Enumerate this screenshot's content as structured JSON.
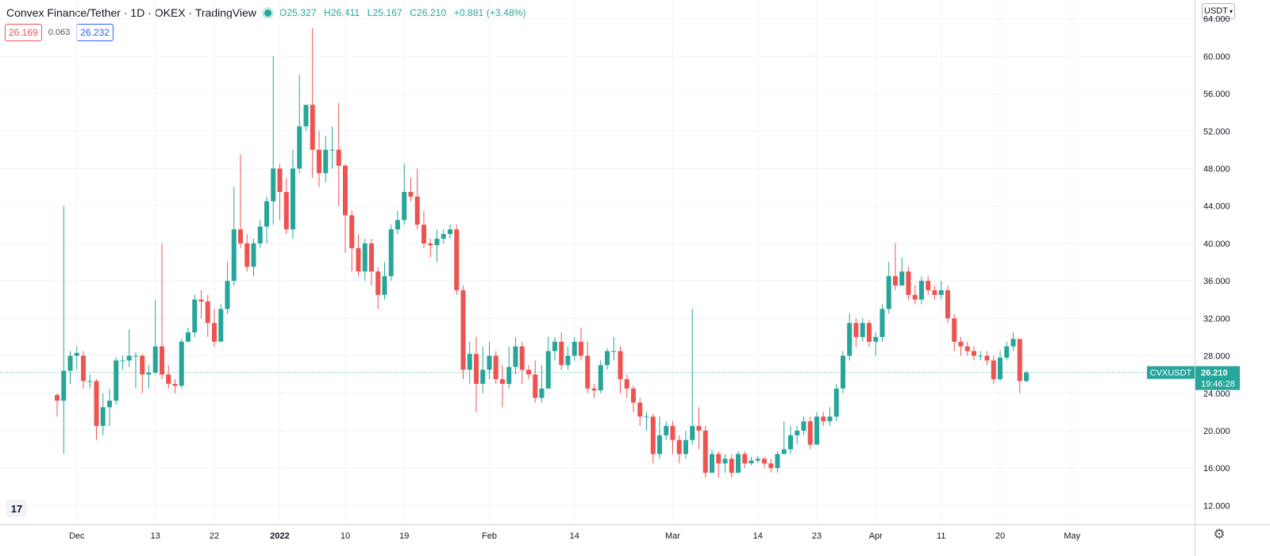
{
  "header": {
    "title": "Convex Finance/Tether · 1D · OKEX · TradingView",
    "ohlc": {
      "open": "O25.327",
      "high": "H26.411",
      "low": "L25.167",
      "close": "C26.210",
      "change": "+0.881 (+3.48%)"
    }
  },
  "quote": {
    "bid": "26.169",
    "spread": "0.063",
    "ask": "26.232"
  },
  "currency_button": {
    "label": "USDT",
    "caret": "▾"
  },
  "icons": {
    "settings": "gear-icon",
    "logo": "tradingview-logo-icon",
    "live": "live-dot-icon"
  },
  "colors": {
    "up": "#26a69a",
    "down": "#ef5350",
    "grid": "#f0f3fa",
    "bid": "#ef5350",
    "ask": "#2962ff"
  },
  "chart_data": {
    "type": "candlestick",
    "ylim": [
      10,
      66
    ],
    "y_ticks": [
      12,
      16,
      20,
      24,
      28,
      32,
      36,
      40,
      44,
      48,
      52,
      56,
      60,
      64
    ],
    "y_tick_labels": [
      "12.000",
      "16.000",
      "20.000",
      "24.000",
      "28.000",
      "32.000",
      "36.000",
      "40.000",
      "44.000",
      "48.000",
      "52.000",
      "56.000",
      "60.000",
      "64.000"
    ],
    "x_ticks": [
      {
        "label": "Dec",
        "index": 3,
        "bold": false
      },
      {
        "label": "13",
        "index": 15,
        "bold": false
      },
      {
        "label": "22",
        "index": 24,
        "bold": false
      },
      {
        "label": "2022",
        "index": 34,
        "bold": true
      },
      {
        "label": "10",
        "index": 44,
        "bold": false
      },
      {
        "label": "19",
        "index": 53,
        "bold": false
      },
      {
        "label": "Feb",
        "index": 66,
        "bold": false
      },
      {
        "label": "14",
        "index": 79,
        "bold": false
      },
      {
        "label": "Mar",
        "index": 94,
        "bold": false
      },
      {
        "label": "14",
        "index": 107,
        "bold": false
      },
      {
        "label": "23",
        "index": 116,
        "bold": false
      },
      {
        "label": "Apr",
        "index": 125,
        "bold": false
      },
      {
        "label": "11",
        "index": 135,
        "bold": false
      },
      {
        "label": "20",
        "index": 144,
        "bold": false
      },
      {
        "label": "May",
        "index": 155,
        "bold": false
      }
    ],
    "last_price": {
      "symbol": "CVXUSDT",
      "value": "26.210",
      "countdown": "19:46:28",
      "y": 26.21
    },
    "candles": [
      [
        23.8,
        23.2,
        24.0,
        21.5
      ],
      [
        23.2,
        26.4,
        44.0,
        17.5
      ],
      [
        26.4,
        28.0,
        28.5,
        25.0
      ],
      [
        28.0,
        28.3,
        29.0,
        26.5
      ],
      [
        28.0,
        25.3,
        28.5,
        24.5
      ],
      [
        25.3,
        25.3,
        26.0,
        24.5
      ],
      [
        25.3,
        20.5,
        25.5,
        19.0
      ],
      [
        20.5,
        22.5,
        24.0,
        19.5
      ],
      [
        22.5,
        23.2,
        24.5,
        20.5
      ],
      [
        23.2,
        27.5,
        27.8,
        22.8
      ],
      [
        27.5,
        27.5,
        28.0,
        26.5
      ],
      [
        27.5,
        28.0,
        30.8,
        26.8
      ],
      [
        28.0,
        28.0,
        28.4,
        24.5
      ],
      [
        28.0,
        26.0,
        28.2,
        24.0
      ],
      [
        26.0,
        26.2,
        27.0,
        24.5
      ],
      [
        26.2,
        29.0,
        34.0,
        26.0
      ],
      [
        29.0,
        26.0,
        40.0,
        25.5
      ],
      [
        26.0,
        25.0,
        27.0,
        24.5
      ],
      [
        25.0,
        24.8,
        25.5,
        24.0
      ],
      [
        24.8,
        29.5,
        29.8,
        24.5
      ],
      [
        29.5,
        30.5,
        31.0,
        29.5
      ],
      [
        30.5,
        34.0,
        34.5,
        30.0
      ],
      [
        34.0,
        33.8,
        35.0,
        32.0
      ],
      [
        33.8,
        31.5,
        34.5,
        30.0
      ],
      [
        31.5,
        29.5,
        33.0,
        29.0
      ],
      [
        29.5,
        33.0,
        33.5,
        29.8
      ],
      [
        33.0,
        36.0,
        38.0,
        32.5
      ],
      [
        36.0,
        41.5,
        46.0,
        35.5
      ],
      [
        41.5,
        40.0,
        49.5,
        39.5
      ],
      [
        40.0,
        37.5,
        41.0,
        37.0
      ],
      [
        37.5,
        40.0,
        40.5,
        36.5
      ],
      [
        40.0,
        41.8,
        42.5,
        39.5
      ],
      [
        41.8,
        44.5,
        45.0,
        40.0
      ],
      [
        44.5,
        48.0,
        60.0,
        42.0
      ],
      [
        48.0,
        45.5,
        48.5,
        42.5
      ],
      [
        45.5,
        41.5,
        47.0,
        41.0
      ],
      [
        41.5,
        48.0,
        50.0,
        40.5
      ],
      [
        48.0,
        52.5,
        58.0,
        47.5
      ],
      [
        52.5,
        54.8,
        54.8,
        52.0
      ],
      [
        54.8,
        50.0,
        63.0,
        47.0
      ],
      [
        50.0,
        47.5,
        52.0,
        46.0
      ],
      [
        47.5,
        50.0,
        51.5,
        46.5
      ],
      [
        50.0,
        50.0,
        52.5,
        48.0
      ],
      [
        50.0,
        48.3,
        55.0,
        44.0
      ],
      [
        48.3,
        43.0,
        48.5,
        39.0
      ],
      [
        43.0,
        39.5,
        43.5,
        37.0
      ],
      [
        39.5,
        37.0,
        41.0,
        36.5
      ],
      [
        37.0,
        40.0,
        40.5,
        36.0
      ],
      [
        40.0,
        37.0,
        40.5,
        35.5
      ],
      [
        37.0,
        34.5,
        37.5,
        33.0
      ],
      [
        34.5,
        36.5,
        38.0,
        34.0
      ],
      [
        36.5,
        41.5,
        42.0,
        36.0
      ],
      [
        41.5,
        42.5,
        43.5,
        41.0
      ],
      [
        42.5,
        45.5,
        48.5,
        42.0
      ],
      [
        45.5,
        45.0,
        47.0,
        44.5
      ],
      [
        45.0,
        42.0,
        48.0,
        41.5
      ],
      [
        42.0,
        40.0,
        43.5,
        39.5
      ],
      [
        40.0,
        39.8,
        40.5,
        38.5
      ],
      [
        39.8,
        40.5,
        41.5,
        38.0
      ],
      [
        40.5,
        41.0,
        41.5,
        40.0
      ],
      [
        41.0,
        41.5,
        42.0,
        40.5
      ],
      [
        41.5,
        35.0,
        42.0,
        34.5
      ],
      [
        35.0,
        26.5,
        35.5,
        25.5
      ],
      [
        26.5,
        28.2,
        29.5,
        25.0
      ],
      [
        28.2,
        25.0,
        30.0,
        22.0
      ],
      [
        25.0,
        26.5,
        29.0,
        24.0
      ],
      [
        26.5,
        28.0,
        29.5,
        25.5
      ],
      [
        28.0,
        25.5,
        28.5,
        25.0
      ],
      [
        25.5,
        25.0,
        27.0,
        22.5
      ],
      [
        25.0,
        26.8,
        29.0,
        24.5
      ],
      [
        26.8,
        29.0,
        30.0,
        26.0
      ],
      [
        29.0,
        26.5,
        29.5,
        25.0
      ],
      [
        26.5,
        26.0,
        27.0,
        25.5
      ],
      [
        26.0,
        23.5,
        27.5,
        23.0
      ],
      [
        23.5,
        24.5,
        27.0,
        23.0
      ],
      [
        24.5,
        28.5,
        30.0,
        24.5
      ],
      [
        28.5,
        29.5,
        30.0,
        27.5
      ],
      [
        29.5,
        27.0,
        30.5,
        26.5
      ],
      [
        27.0,
        28.0,
        29.0,
        26.5
      ],
      [
        28.0,
        29.5,
        30.0,
        27.5
      ],
      [
        29.5,
        28.0,
        31.0,
        27.5
      ],
      [
        28.0,
        24.5,
        29.5,
        24.0
      ],
      [
        24.5,
        24.3,
        25.0,
        23.5
      ],
      [
        24.3,
        27.0,
        27.5,
        24.0
      ],
      [
        27.0,
        28.5,
        28.8,
        26.5
      ],
      [
        28.5,
        28.5,
        30.0,
        27.5
      ],
      [
        28.5,
        25.5,
        29.0,
        24.0
      ],
      [
        25.5,
        24.5,
        26.0,
        23.5
      ],
      [
        24.5,
        23.0,
        24.8,
        22.0
      ],
      [
        23.0,
        21.5,
        23.5,
        20.5
      ],
      [
        21.5,
        21.5,
        22.0,
        20.0
      ],
      [
        21.5,
        17.5,
        21.8,
        16.5
      ],
      [
        17.5,
        19.5,
        21.5,
        17.0
      ],
      [
        19.5,
        20.5,
        21.0,
        19.0
      ],
      [
        20.5,
        19.0,
        21.0,
        17.5
      ],
      [
        19.0,
        17.5,
        19.5,
        16.5
      ],
      [
        17.5,
        19.0,
        20.0,
        17.0
      ],
      [
        19.0,
        20.5,
        33.0,
        18.5
      ],
      [
        20.5,
        20.0,
        22.5,
        18.0
      ],
      [
        20.0,
        15.5,
        20.5,
        15.0
      ],
      [
        15.5,
        17.5,
        18.0,
        15.5
      ],
      [
        17.5,
        16.5,
        17.8,
        15.0
      ],
      [
        16.5,
        17.0,
        17.5,
        15.5
      ],
      [
        17.0,
        15.5,
        17.5,
        15.0
      ],
      [
        15.5,
        17.5,
        17.8,
        15.5
      ],
      [
        17.5,
        16.5,
        17.8,
        16.0
      ],
      [
        16.5,
        16.8,
        17.2,
        16.3
      ],
      [
        16.8,
        17.0,
        17.3,
        16.5
      ],
      [
        17.0,
        16.5,
        17.2,
        16.0
      ],
      [
        16.5,
        16.0,
        17.0,
        15.5
      ],
      [
        16.0,
        17.5,
        17.8,
        15.5
      ],
      [
        17.5,
        18.0,
        21.0,
        17.5
      ],
      [
        18.0,
        19.5,
        20.5,
        17.5
      ],
      [
        19.5,
        20.0,
        20.5,
        18.5
      ],
      [
        20.0,
        21.0,
        21.5,
        19.5
      ],
      [
        21.0,
        18.5,
        21.5,
        18.0
      ],
      [
        18.5,
        21.5,
        22.0,
        18.5
      ],
      [
        21.5,
        21.0,
        22.0,
        20.5
      ],
      [
        21.0,
        21.5,
        22.5,
        20.5
      ],
      [
        21.5,
        24.5,
        25.0,
        21.0
      ],
      [
        24.5,
        28.0,
        28.5,
        24.0
      ],
      [
        28.0,
        31.5,
        32.5,
        27.5
      ],
      [
        31.5,
        30.0,
        32.0,
        29.0
      ],
      [
        30.0,
        31.5,
        32.0,
        29.5
      ],
      [
        31.5,
        29.5,
        31.8,
        29.0
      ],
      [
        29.5,
        30.0,
        30.5,
        28.0
      ],
      [
        30.0,
        33.0,
        33.5,
        29.5
      ],
      [
        33.0,
        36.5,
        38.0,
        32.5
      ],
      [
        36.5,
        35.5,
        40.0,
        35.0
      ],
      [
        35.5,
        37.0,
        38.5,
        35.5
      ],
      [
        37.0,
        34.5,
        37.5,
        34.0
      ],
      [
        34.5,
        34.0,
        35.5,
        33.5
      ],
      [
        34.0,
        36.0,
        36.5,
        33.5
      ],
      [
        36.0,
        35.0,
        36.5,
        34.5
      ],
      [
        35.0,
        34.5,
        35.5,
        34.0
      ],
      [
        34.5,
        35.0,
        36.0,
        34.0
      ],
      [
        35.0,
        32.0,
        35.5,
        31.5
      ],
      [
        32.0,
        29.5,
        32.5,
        28.5
      ],
      [
        29.5,
        29.0,
        30.0,
        28.0
      ],
      [
        29.0,
        28.5,
        29.5,
        28.0
      ],
      [
        28.5,
        28.0,
        29.0,
        27.5
      ],
      [
        28.0,
        28.0,
        28.5,
        27.5
      ],
      [
        28.0,
        27.5,
        28.5,
        27.0
      ],
      [
        27.5,
        25.5,
        28.0,
        25.0
      ],
      [
        25.5,
        27.8,
        28.5,
        25.3
      ],
      [
        27.8,
        29.0,
        29.5,
        27.5
      ],
      [
        29.0,
        29.8,
        30.5,
        28.5
      ],
      [
        29.8,
        25.3,
        29.8,
        24.0
      ],
      [
        25.3,
        26.21,
        26.4,
        25.2
      ]
    ]
  }
}
